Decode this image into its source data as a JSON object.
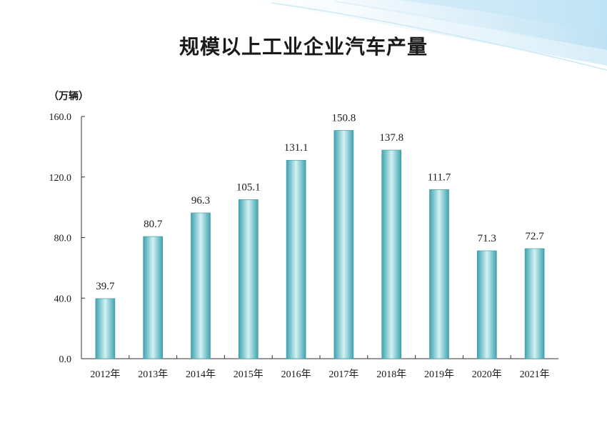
{
  "chart_data": {
    "type": "bar",
    "title": "规模以上工业企业汽车产量",
    "unit_label": "（万辆）",
    "categories": [
      "2012年",
      "2013年",
      "2014年",
      "2015年",
      "2016年",
      "2017年",
      "2018年",
      "2019年",
      "2020年",
      "2021年"
    ],
    "values": [
      39.7,
      80.7,
      96.3,
      105.1,
      131.1,
      150.8,
      137.8,
      111.7,
      71.3,
      72.7
    ],
    "value_labels": [
      "39.7",
      "80.7",
      "96.3",
      "105.1",
      "131.1",
      "150.8",
      "137.8",
      "111.7",
      "71.3",
      "72.7"
    ],
    "ylim": [
      0,
      160
    ],
    "yticks": [
      0,
      40,
      80,
      120,
      160
    ],
    "ytick_labels": [
      "0.0",
      "40.0",
      "80.0",
      "120.0",
      "160.0"
    ],
    "grid": false,
    "colors": {
      "bar_dark": "#3fa4b0",
      "bar_light": "#d3f1f3",
      "axis": "#333333"
    }
  }
}
